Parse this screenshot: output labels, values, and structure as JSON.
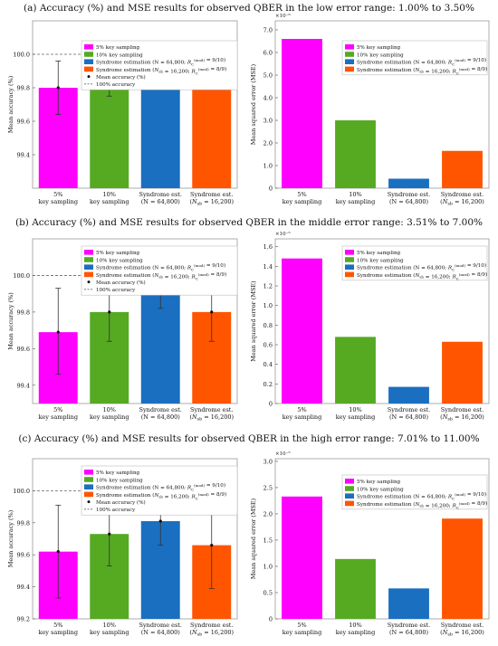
{
  "panels": [
    {
      "caption": "(a) Accuracy (%) and MSE results for observed QBER in the low error range: 1.00% to 3.50%"
    },
    {
      "caption": "(b) Accuracy (%) and MSE results for observed QBER in the middle error range: 3.51% to 7.00%"
    },
    {
      "caption": "(c) Accuracy (%) and MSE results for observed QBER in the high error range: 7.01% to 11.00%"
    }
  ],
  "colors": {
    "magenta": "#ff00ff",
    "green": "#55aa22",
    "blue": "#1a6fc0",
    "orange": "#ff5500"
  },
  "chart_data": [
    {
      "type": "bar",
      "categories": [
        [
          "5%",
          "key sampling"
        ],
        [
          "10%",
          "key sampling"
        ],
        [
          "Syndrome est.",
          "(N = 64,800)"
        ],
        [
          "Syndrome est.",
          "(Nsb = 16,200)"
        ]
      ],
      "values": [
        99.8,
        99.86,
        99.95,
        99.9
      ],
      "errors": [
        [
          99.64,
          99.96
        ],
        [
          99.75,
          99.97
        ],
        [
          99.91,
          99.99
        ],
        [
          99.82,
          99.98
        ]
      ],
      "ylabel": "Mean accuracy (%)",
      "ylim": [
        99.2,
        100.2
      ],
      "yticks": [
        "99.4",
        "99.6",
        "99.8",
        "100.0"
      ],
      "ytick_values": [
        99.4,
        99.6,
        99.8,
        100.0
      ],
      "reference_line": 100.0,
      "legend": [
        "5% key sampling",
        "10% key sampling",
        "Syndrome estimation (N = 64,800; R_C^(mod) = 9/10)",
        "Syndrome estimation (N_sb = 16,200; R_C^(mod) = 8/9)",
        "Mean accuracy (%)",
        "100% accuracy"
      ],
      "legend_position": "top-left"
    },
    {
      "type": "bar",
      "categories": [
        [
          "5%",
          "key sampling"
        ],
        [
          "10%",
          "key sampling"
        ],
        [
          "Syndrome est.",
          "(N = 64,800)"
        ],
        [
          "Syndrome est.",
          "(Nsb = 16,200)"
        ]
      ],
      "values": [
        6.6,
        3.0,
        0.42,
        1.65
      ],
      "ylabel": "Mean squared error (MSE)",
      "multiplier": "×10⁻⁶",
      "ylim": [
        0,
        7.4
      ],
      "yticks": [
        "0",
        "1.0",
        "2.0",
        "3.0",
        "4.0",
        "5.0",
        "6.0",
        "7.0"
      ],
      "ytick_values": [
        0,
        1,
        2,
        3,
        4,
        5,
        6,
        7
      ],
      "legend": [
        "5% key sampling",
        "10% key sampling",
        "Syndrome estimation (N = 64,800; R_C^(mod) = 9/10)",
        "Syndrome estimation (N_sb = 16,200; R_C^(mod) = 8/9)"
      ],
      "legend_position": "top-right"
    },
    {
      "type": "bar",
      "categories": [
        [
          "5%",
          "key sampling"
        ],
        [
          "10%",
          "key sampling"
        ],
        [
          "Syndrome est.",
          "(N = 64,800)"
        ],
        [
          "Syndrome est.",
          "(Nsb = 16,200)"
        ]
      ],
      "values": [
        99.69,
        99.8,
        99.9,
        99.8
      ],
      "errors": [
        [
          99.46,
          99.93
        ],
        [
          99.64,
          99.96
        ],
        [
          99.82,
          99.98
        ],
        [
          99.64,
          99.96
        ]
      ],
      "ylabel": "Mean accuracy (%)",
      "ylim": [
        99.3,
        100.2
      ],
      "yticks": [
        "99.4",
        "99.6",
        "99.8",
        "100.0"
      ],
      "ytick_values": [
        99.4,
        99.6,
        99.8,
        100.0
      ],
      "reference_line": 100.0,
      "legend": [
        "5% key sampling",
        "10% key sampling",
        "Syndrome estimation (N = 64,800; R_C^(mod) = 9/10)",
        "Syndrome estimation (N_sb = 16,200; R_C^(mod) = 8/9)",
        "Mean accuracy (%)",
        "100% accuracy"
      ],
      "legend_position": "top-left"
    },
    {
      "type": "bar",
      "categories": [
        [
          "5%",
          "key sampling"
        ],
        [
          "10%",
          "key sampling"
        ],
        [
          "Syndrome est.",
          "(N = 64,800)"
        ],
        [
          "Syndrome est.",
          "(Nsb = 16,200)"
        ]
      ],
      "values": [
        1.48,
        0.68,
        0.17,
        0.63
      ],
      "ylabel": "Mean squared error (MSE)",
      "multiplier": "×10⁻⁵",
      "ylim": [
        0,
        1.68
      ],
      "yticks": [
        "0",
        "0.2",
        "0.4",
        "0.6",
        "0.8",
        "1.0",
        "1.2",
        "1.4",
        "1.6"
      ],
      "ytick_values": [
        0,
        0.2,
        0.4,
        0.6,
        0.8,
        1.0,
        1.2,
        1.4,
        1.6
      ],
      "legend": [
        "5% key sampling",
        "10% key sampling",
        "Syndrome estimation (N = 64,800; R_C^(mod) = 9/10)",
        "Syndrome estimation (N_sb = 16,200; R_C^(mod) = 8/9)"
      ],
      "legend_position": "top-right"
    },
    {
      "type": "bar",
      "categories": [
        [
          "5%",
          "key sampling"
        ],
        [
          "10%",
          "key sampling"
        ],
        [
          "Syndrome est.",
          "(N = 64,800)"
        ],
        [
          "Syndrome est.",
          "(Nsb = 16,200)"
        ]
      ],
      "values": [
        99.62,
        99.73,
        99.81,
        99.66
      ],
      "errors": [
        [
          99.33,
          99.91
        ],
        [
          99.53,
          99.93
        ],
        [
          99.66,
          99.96
        ],
        [
          99.39,
          99.93
        ]
      ],
      "ylabel": "Mean accuracy (%)",
      "ylim": [
        99.2,
        100.2
      ],
      "yticks": [
        "99.2",
        "99.4",
        "99.6",
        "99.8",
        "100.0"
      ],
      "ytick_values": [
        99.2,
        99.4,
        99.6,
        99.8,
        100.0
      ],
      "reference_line": 100.0,
      "legend": [
        "5% key sampling",
        "10% key sampling",
        "Syndrome estimation (N = 64,800; R_C^(mod) = 9/10)",
        "Syndrome estimation (N_sb = 16,200; R_C^(mod) = 8/9)",
        "Mean accuracy (%)",
        "100% accuracy"
      ],
      "legend_position": "top-left"
    },
    {
      "type": "bar",
      "categories": [
        [
          "5%",
          "key sampling"
        ],
        [
          "10%",
          "key sampling"
        ],
        [
          "Syndrome est.",
          "(N = 64,800)"
        ],
        [
          "Syndrome est.",
          "(Nsb = 16,200)"
        ]
      ],
      "values": [
        2.33,
        1.14,
        0.58,
        1.91
      ],
      "ylabel": "Mean squared error (MSE)",
      "multiplier": "×10⁻⁵",
      "ylim": [
        0,
        3.05
      ],
      "yticks": [
        "0",
        "0.5",
        "1.0",
        "1.5",
        "2.0",
        "2.5",
        "3.0"
      ],
      "ytick_values": [
        0,
        0.5,
        1.0,
        1.5,
        2.0,
        2.5,
        3.0
      ],
      "legend": [
        "5% key sampling",
        "10% key sampling",
        "Syndrome estimation (N = 64,800; R_C^(mod) = 9/10)",
        "Syndrome estimation (N_sb = 16,200; R_C^(mod) = 8/9)"
      ],
      "legend_position": "top-right"
    }
  ]
}
